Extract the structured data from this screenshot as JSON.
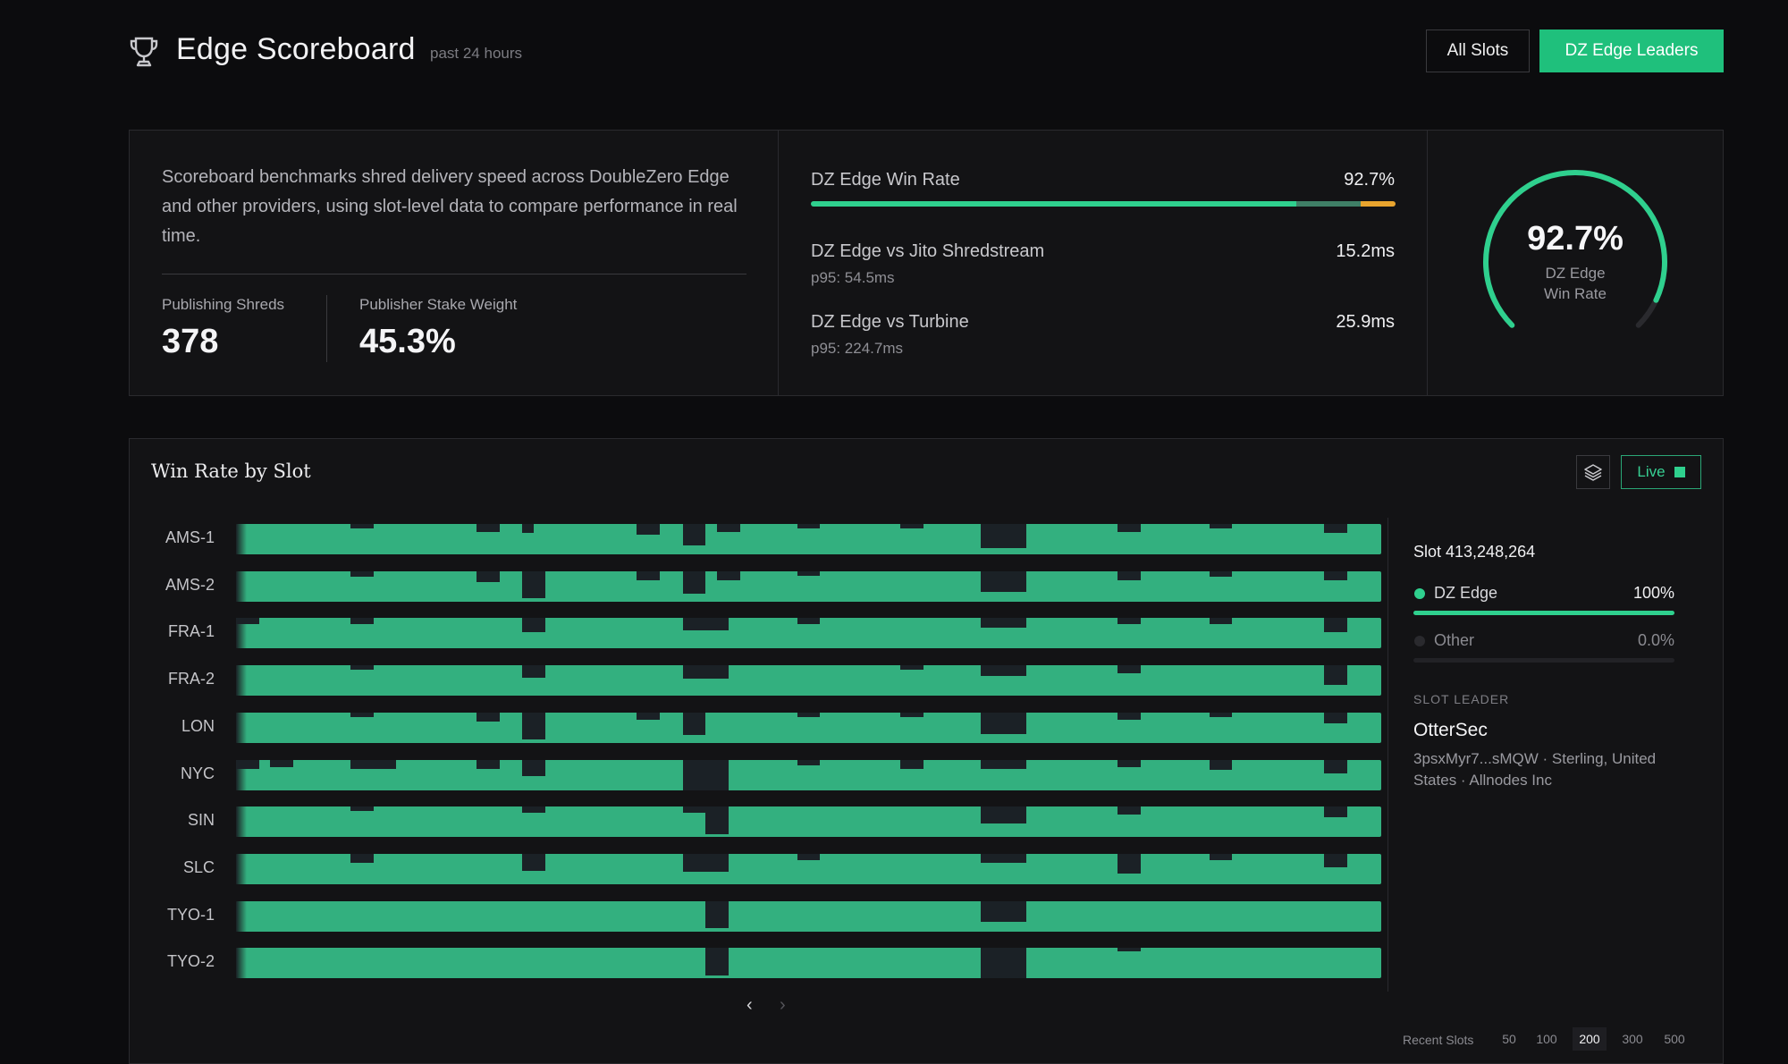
{
  "header": {
    "title": "Edge Scoreboard",
    "subtitle": "past 24 hours",
    "tabs": [
      {
        "label": "All Slots",
        "active": false
      },
      {
        "label": "DZ Edge Leaders",
        "active": true
      }
    ],
    "icon": "trophy-icon"
  },
  "summary": {
    "description": "Scoreboard benchmarks shred delivery speed across DoubleZero Edge and other providers, using slot-level data to compare performance in real time.",
    "stats": [
      {
        "label": "Publishing Shreds",
        "value": "378"
      },
      {
        "label": "Publisher Stake Weight",
        "value": "45.3%"
      }
    ],
    "win_rate": {
      "label": "DZ Edge Win Rate",
      "value": "92.7%",
      "fraction": 0.927
    },
    "comparisons": [
      {
        "label": "DZ Edge vs Jito Shredstream",
        "value": "15.2ms",
        "p95": "p95: 54.5ms"
      },
      {
        "label": "DZ Edge vs Turbine",
        "value": "25.9ms",
        "p95": "p95: 224.7ms"
      }
    ],
    "gauge": {
      "value": "92.7%",
      "label_line1": "DZ Edge",
      "label_line2": "Win Rate",
      "fraction": 0.927
    }
  },
  "chart": {
    "title": "Win Rate by Slot",
    "live_label": "Live",
    "layers_icon": "layers-icon",
    "regions": [
      "AMS-1",
      "AMS-2",
      "FRA-1",
      "FRA-2",
      "LON",
      "NYC",
      "SIN",
      "SLC",
      "TYO-1",
      "TYO-2"
    ],
    "nav_prev": "‹",
    "nav_next": "›",
    "recent_label": "Recent Slots",
    "recent_options": [
      "50",
      "100",
      "200",
      "300",
      "500"
    ],
    "recent_selected": "200"
  },
  "chart_data": {
    "type": "heatmap",
    "title": "Win Rate by Slot",
    "rows": [
      "AMS-1",
      "AMS-2",
      "FRA-1",
      "FRA-2",
      "LON",
      "NYC",
      "SIN",
      "SLC",
      "TYO-1",
      "TYO-2"
    ],
    "slots": 200,
    "dip_segments": [
      [
        [
          0.1,
          0.12,
          0.15
        ],
        [
          0.21,
          0.23,
          0.25
        ],
        [
          0.25,
          0.26,
          0.3
        ],
        [
          0.35,
          0.37,
          0.35
        ],
        [
          0.39,
          0.41,
          0.7
        ],
        [
          0.42,
          0.44,
          0.25
        ],
        [
          0.49,
          0.51,
          0.15
        ],
        [
          0.58,
          0.6,
          0.15
        ],
        [
          0.65,
          0.69,
          0.8
        ],
        [
          0.77,
          0.79,
          0.25
        ],
        [
          0.85,
          0.87,
          0.15
        ],
        [
          0.95,
          0.97,
          0.3
        ]
      ],
      [
        [
          0.1,
          0.12,
          0.2
        ],
        [
          0.21,
          0.23,
          0.35
        ],
        [
          0.25,
          0.27,
          0.9
        ],
        [
          0.35,
          0.37,
          0.3
        ],
        [
          0.39,
          0.41,
          0.75
        ],
        [
          0.42,
          0.44,
          0.3
        ],
        [
          0.49,
          0.51,
          0.15
        ],
        [
          0.65,
          0.69,
          0.7
        ],
        [
          0.77,
          0.79,
          0.3
        ],
        [
          0.85,
          0.87,
          0.2
        ],
        [
          0.95,
          0.97,
          0.3
        ]
      ],
      [
        [
          0.0,
          0.02,
          0.2
        ],
        [
          0.1,
          0.12,
          0.2
        ],
        [
          0.25,
          0.27,
          0.45
        ],
        [
          0.39,
          0.43,
          0.4
        ],
        [
          0.49,
          0.51,
          0.2
        ],
        [
          0.65,
          0.69,
          0.3
        ],
        [
          0.77,
          0.79,
          0.2
        ],
        [
          0.85,
          0.87,
          0.2
        ],
        [
          0.95,
          0.97,
          0.45
        ]
      ],
      [
        [
          0.1,
          0.12,
          0.15
        ],
        [
          0.25,
          0.27,
          0.4
        ],
        [
          0.39,
          0.43,
          0.45
        ],
        [
          0.58,
          0.6,
          0.15
        ],
        [
          0.65,
          0.69,
          0.35
        ],
        [
          0.77,
          0.79,
          0.25
        ],
        [
          0.95,
          0.97,
          0.65
        ]
      ],
      [
        [
          0.1,
          0.12,
          0.15
        ],
        [
          0.21,
          0.23,
          0.3
        ],
        [
          0.25,
          0.27,
          0.9
        ],
        [
          0.35,
          0.37,
          0.25
        ],
        [
          0.39,
          0.41,
          0.75
        ],
        [
          0.49,
          0.51,
          0.15
        ],
        [
          0.58,
          0.6,
          0.15
        ],
        [
          0.65,
          0.69,
          0.7
        ],
        [
          0.77,
          0.79,
          0.25
        ],
        [
          0.85,
          0.87,
          0.15
        ],
        [
          0.95,
          0.97,
          0.35
        ]
      ],
      [
        [
          0.0,
          0.02,
          0.3
        ],
        [
          0.03,
          0.05,
          0.25
        ],
        [
          0.1,
          0.14,
          0.3
        ],
        [
          0.21,
          0.23,
          0.3
        ],
        [
          0.25,
          0.27,
          0.55
        ],
        [
          0.39,
          0.43,
          1.0
        ],
        [
          0.49,
          0.51,
          0.2
        ],
        [
          0.58,
          0.6,
          0.3
        ],
        [
          0.65,
          0.69,
          0.3
        ],
        [
          0.77,
          0.79,
          0.25
        ],
        [
          0.85,
          0.87,
          0.35
        ],
        [
          0.95,
          0.97,
          0.45
        ]
      ],
      [
        [
          0.1,
          0.12,
          0.15
        ],
        [
          0.25,
          0.27,
          0.2
        ],
        [
          0.39,
          0.41,
          0.2
        ],
        [
          0.41,
          0.43,
          0.9
        ],
        [
          0.65,
          0.69,
          0.55
        ],
        [
          0.77,
          0.79,
          0.25
        ],
        [
          0.95,
          0.97,
          0.35
        ]
      ],
      [
        [
          0.1,
          0.12,
          0.3
        ],
        [
          0.25,
          0.27,
          0.55
        ],
        [
          0.39,
          0.43,
          0.6
        ],
        [
          0.49,
          0.51,
          0.2
        ],
        [
          0.65,
          0.69,
          0.3
        ],
        [
          0.77,
          0.79,
          0.65
        ],
        [
          0.85,
          0.87,
          0.2
        ],
        [
          0.95,
          0.97,
          0.45
        ]
      ],
      [
        [
          0.41,
          0.43,
          0.9
        ],
        [
          0.65,
          0.69,
          0.7
        ]
      ],
      [
        [
          0.41,
          0.43,
          0.9
        ],
        [
          0.65,
          0.69,
          1.0
        ],
        [
          0.77,
          0.79,
          0.1
        ]
      ]
    ]
  },
  "slot_detail": {
    "slot": "Slot 413,248,264",
    "legend": [
      {
        "name": "DZ Edge",
        "value": "100%",
        "fraction": 1.0,
        "color": "#2fd08e"
      },
      {
        "name": "Other",
        "value": "0.0%",
        "fraction": 0.0,
        "color": "#2a2a2e"
      }
    ],
    "leader_heading": "SLOT LEADER",
    "leader_name": "OtterSec",
    "leader_info": "3psxMyr7...sMQW · Sterling, United States · Allnodes Inc"
  },
  "colors": {
    "accent": "#1fc07c",
    "strip_green": "#33b07f",
    "dip": "#1b2126",
    "warning": "#e8a42e"
  }
}
